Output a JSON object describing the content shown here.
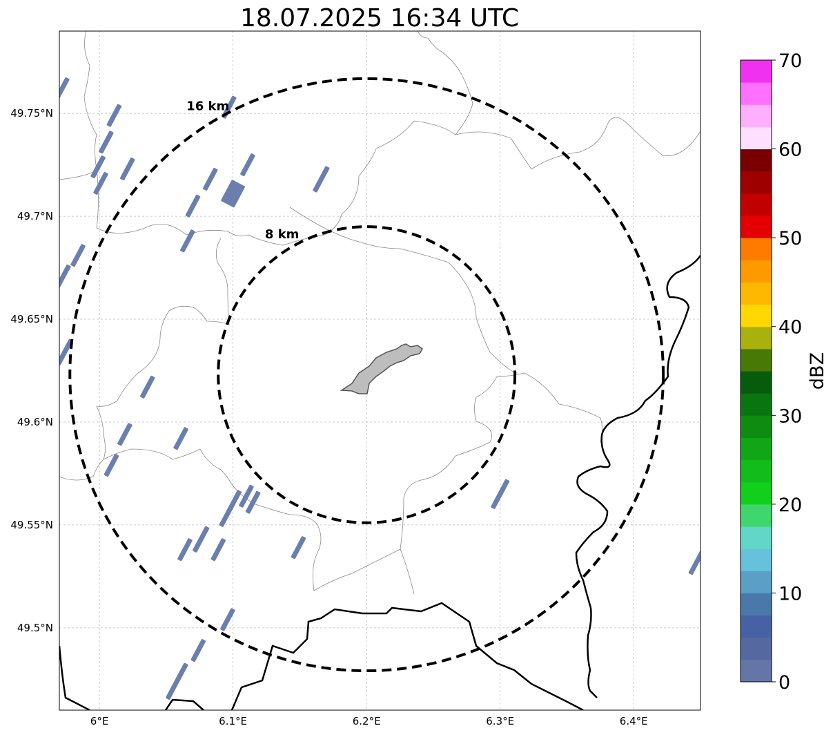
{
  "title": "18.07.2025 16:34 UTC",
  "map": {
    "lon_range": [
      5.97,
      6.45
    ],
    "lat_range": [
      49.46,
      49.79
    ],
    "center": {
      "lon": 6.2,
      "lat": 49.623
    },
    "x_ticks": [
      {
        "value": 6.0,
        "label": "6°E"
      },
      {
        "value": 6.1,
        "label": "6.1°E"
      },
      {
        "value": 6.2,
        "label": "6.2°E"
      },
      {
        "value": 6.3,
        "label": "6.3°E"
      },
      {
        "value": 6.4,
        "label": "6.4°E"
      }
    ],
    "y_ticks": [
      {
        "value": 49.5,
        "label": "49.5°N"
      },
      {
        "value": 49.55,
        "label": "49.55°N"
      },
      {
        "value": 49.6,
        "label": "49.6°N"
      },
      {
        "value": 49.65,
        "label": "49.65°N"
      },
      {
        "value": 49.7,
        "label": "49.7°N"
      },
      {
        "value": 49.75,
        "label": "49.75°N"
      }
    ],
    "grid": true,
    "range_rings": [
      {
        "radius_km": 8,
        "label": "8 km",
        "style": "dashed"
      },
      {
        "radius_km": 16,
        "label": "16 km",
        "style": "dashed"
      }
    ],
    "echo_color": "#6a7fad",
    "echoes": [
      {
        "lon": 5.972,
        "lat": 49.762,
        "len": 0.006
      },
      {
        "lon": 6.011,
        "lat": 49.749,
        "len": 0.006
      },
      {
        "lon": 6.005,
        "lat": 49.736,
        "len": 0.006
      },
      {
        "lon": 5.999,
        "lat": 49.724,
        "len": 0.006
      },
      {
        "lon": 6.021,
        "lat": 49.723,
        "len": 0.006
      },
      {
        "lon": 6.001,
        "lat": 49.716,
        "len": 0.006
      },
      {
        "lon": 6.097,
        "lat": 49.753,
        "len": 0.006
      },
      {
        "lon": 6.111,
        "lat": 49.725,
        "len": 0.006
      },
      {
        "lon": 6.083,
        "lat": 49.718,
        "len": 0.006
      },
      {
        "lon": 6.166,
        "lat": 49.718,
        "len": 0.007
      },
      {
        "lon": 6.07,
        "lat": 49.705,
        "len": 0.006
      },
      {
        "lon": 6.066,
        "lat": 49.688,
        "len": 0.006
      },
      {
        "lon": 5.984,
        "lat": 49.681,
        "len": 0.006
      },
      {
        "lon": 5.973,
        "lat": 49.671,
        "len": 0.006
      },
      {
        "lon": 5.974,
        "lat": 49.634,
        "len": 0.007
      },
      {
        "lon": 6.036,
        "lat": 49.617,
        "len": 0.006
      },
      {
        "lon": 6.019,
        "lat": 49.594,
        "len": 0.006
      },
      {
        "lon": 6.061,
        "lat": 49.592,
        "len": 0.006
      },
      {
        "lon": 6.009,
        "lat": 49.579,
        "len": 0.006
      },
      {
        "lon": 6.098,
        "lat": 49.558,
        "len": 0.01
      },
      {
        "lon": 6.11,
        "lat": 49.564,
        "len": 0.006
      },
      {
        "lon": 6.115,
        "lat": 49.561,
        "len": 0.006
      },
      {
        "lon": 6.076,
        "lat": 49.543,
        "len": 0.007
      },
      {
        "lon": 6.064,
        "lat": 49.538,
        "len": 0.006
      },
      {
        "lon": 6.089,
        "lat": 49.538,
        "len": 0.006
      },
      {
        "lon": 6.149,
        "lat": 49.539,
        "len": 0.006
      },
      {
        "lon": 6.096,
        "lat": 49.504,
        "len": 0.006
      },
      {
        "lon": 6.074,
        "lat": 49.489,
        "len": 0.006
      },
      {
        "lon": 6.058,
        "lat": 49.474,
        "len": 0.01
      },
      {
        "lon": 6.3,
        "lat": 49.565,
        "len": 0.008
      },
      {
        "lon": 6.448,
        "lat": 49.533,
        "len": 0.008
      },
      {
        "lon": 6.1,
        "lat": 49.711,
        "len": 0.006,
        "wide": true
      }
    ]
  },
  "colorbar": {
    "label": "dBZ",
    "min": 0,
    "max": 70,
    "tick_labels": [
      "0",
      "10",
      "20",
      "30",
      "40",
      "50",
      "60",
      "70"
    ],
    "colors": [
      "#6476a8",
      "#5569a0",
      "#4661a4",
      "#4a78ab",
      "#5b9fc7",
      "#65c1dc",
      "#62d7c7",
      "#3fd66e",
      "#11cf1a",
      "#12bc1b",
      "#11a615",
      "#0e8c11",
      "#087510",
      "#065c0b",
      "#487806",
      "#a8b10d",
      "#fed800",
      "#feb800",
      "#fe9a00",
      "#fe7b00",
      "#e40000",
      "#c10000",
      "#9e0000",
      "#7a0000",
      "#fee0fe",
      "#feb0fe",
      "#fe70fe",
      "#f032f0"
    ]
  }
}
